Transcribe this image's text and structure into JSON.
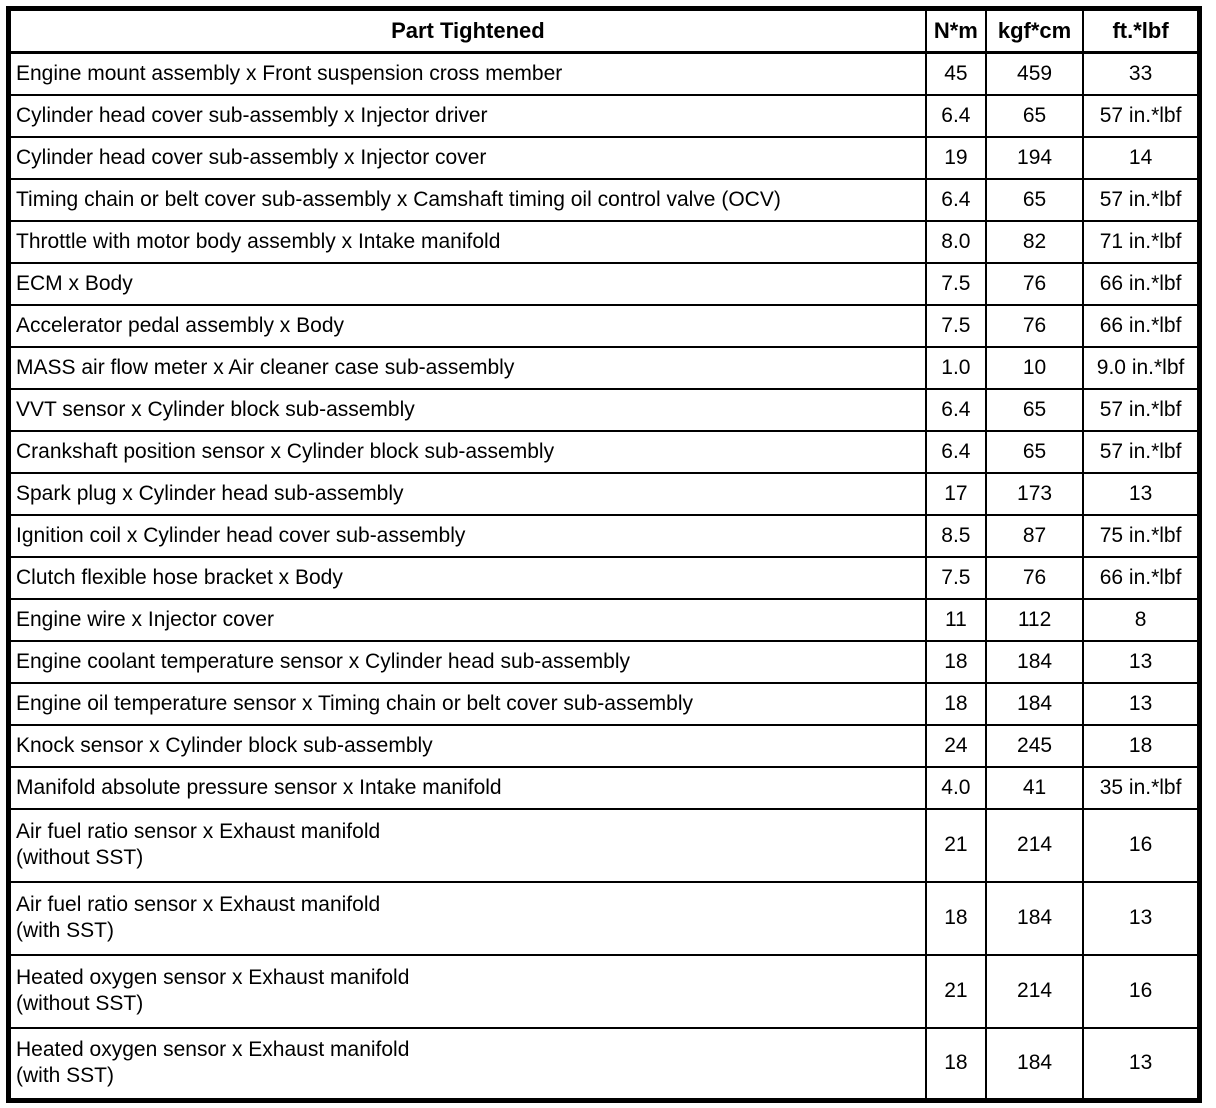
{
  "table": {
    "columns": [
      {
        "label": "Part Tightened"
      },
      {
        "label": "N*m"
      },
      {
        "label": "kgf*cm"
      },
      {
        "label": "ft.*lbf"
      }
    ],
    "rows": [
      {
        "part": "Engine mount assembly x Front suspension cross member",
        "nm": "45",
        "kgfcm": "459",
        "ftlbf": "33"
      },
      {
        "part": "Cylinder head cover sub-assembly x Injector driver",
        "nm": "6.4",
        "kgfcm": "65",
        "ftlbf": "57 in.*lbf"
      },
      {
        "part": "Cylinder head cover sub-assembly x Injector cover",
        "nm": "19",
        "kgfcm": "194",
        "ftlbf": "14"
      },
      {
        "part": "Timing chain or belt cover sub-assembly x Camshaft timing oil control valve (OCV)",
        "nm": "6.4",
        "kgfcm": "65",
        "ftlbf": "57 in.*lbf"
      },
      {
        "part": "Throttle with motor body assembly x Intake manifold",
        "nm": "8.0",
        "kgfcm": "82",
        "ftlbf": "71 in.*lbf"
      },
      {
        "part": "ECM x Body",
        "nm": "7.5",
        "kgfcm": "76",
        "ftlbf": "66 in.*lbf"
      },
      {
        "part": "Accelerator pedal assembly x Body",
        "nm": "7.5",
        "kgfcm": "76",
        "ftlbf": "66 in.*lbf"
      },
      {
        "part": "MASS air flow meter x Air cleaner case sub-assembly",
        "nm": "1.0",
        "kgfcm": "10",
        "ftlbf": "9.0 in.*lbf"
      },
      {
        "part": "VVT sensor x Cylinder block sub-assembly",
        "nm": "6.4",
        "kgfcm": "65",
        "ftlbf": "57 in.*lbf"
      },
      {
        "part": "Crankshaft position sensor x Cylinder block sub-assembly",
        "nm": "6.4",
        "kgfcm": "65",
        "ftlbf": "57 in.*lbf"
      },
      {
        "part": "Spark plug x Cylinder head sub-assembly",
        "nm": "17",
        "kgfcm": "173",
        "ftlbf": "13"
      },
      {
        "part": "Ignition coil x Cylinder head cover sub-assembly",
        "nm": "8.5",
        "kgfcm": "87",
        "ftlbf": "75 in.*lbf"
      },
      {
        "part": "Clutch flexible hose bracket x Body",
        "nm": "7.5",
        "kgfcm": "76",
        "ftlbf": "66 in.*lbf"
      },
      {
        "part": "Engine wire x Injector cover",
        "nm": "11",
        "kgfcm": "112",
        "ftlbf": "8"
      },
      {
        "part": "Engine coolant temperature sensor x Cylinder head sub-assembly",
        "nm": "18",
        "kgfcm": "184",
        "ftlbf": "13"
      },
      {
        "part": "Engine oil temperature sensor x Timing chain or belt cover sub-assembly",
        "nm": "18",
        "kgfcm": "184",
        "ftlbf": "13"
      },
      {
        "part": "Knock sensor x Cylinder block sub-assembly",
        "nm": "24",
        "kgfcm": "245",
        "ftlbf": "18"
      },
      {
        "part": "Manifold absolute pressure sensor x Intake manifold",
        "nm": "4.0",
        "kgfcm": "41",
        "ftlbf": "35 in.*lbf"
      },
      {
        "part": "Air fuel ratio sensor x Exhaust manifold\n(without SST)",
        "nm": "21",
        "kgfcm": "214",
        "ftlbf": "16"
      },
      {
        "part": "Air fuel ratio sensor x Exhaust manifold\n(with SST)",
        "nm": "18",
        "kgfcm": "184",
        "ftlbf": "13"
      },
      {
        "part": "Heated oxygen sensor x Exhaust manifold\n(without SST)",
        "nm": "21",
        "kgfcm": "214",
        "ftlbf": "16"
      },
      {
        "part": "Heated oxygen sensor x Exhaust manifold\n(with SST)",
        "nm": "18",
        "kgfcm": "184",
        "ftlbf": "13"
      }
    ]
  }
}
